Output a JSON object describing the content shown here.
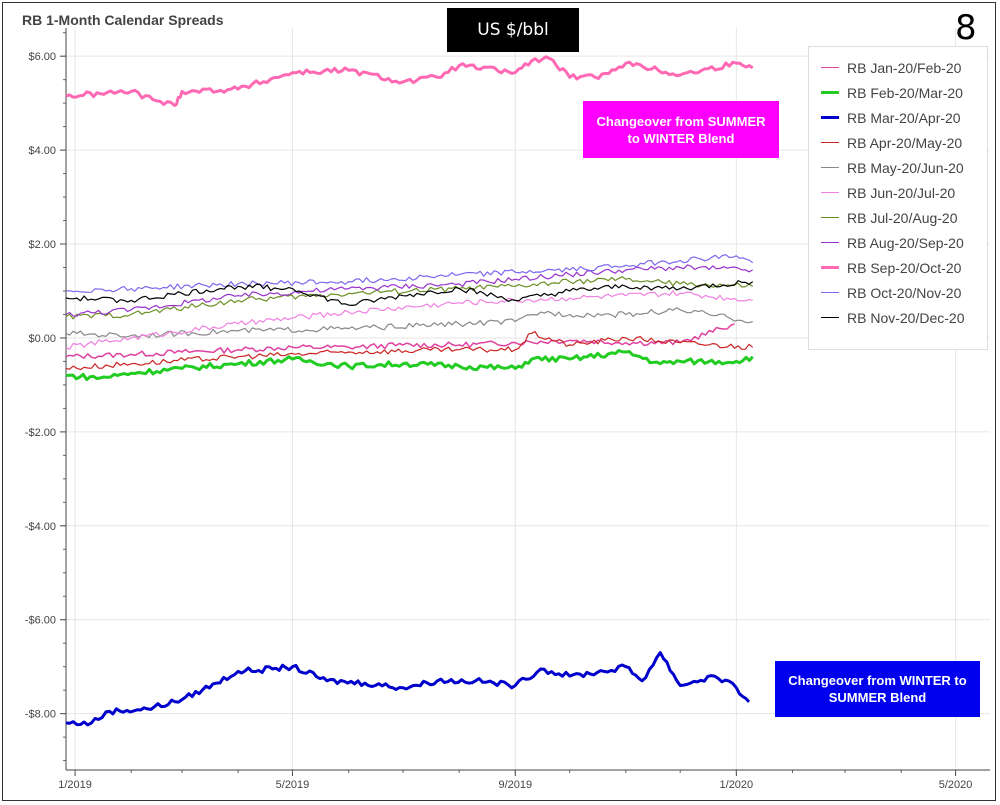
{
  "title": "RB 1-Month Calendar Spreads",
  "unit_label": "US $/bbl",
  "page_number": "8",
  "annotations": {
    "top": "Changeover from SUMMER to WINTER Blend",
    "bottom": "Changeover from WINTER to SUMMER Blend"
  },
  "chart_data": {
    "type": "line",
    "title": "RB 1-Month Calendar Spreads",
    "xlabel": "",
    "ylabel": "US $/bbl",
    "y_tick_labels": [
      "$6.00",
      "$4.00",
      "$2.00",
      "$0.00",
      "-$2.00",
      "-$4.00",
      "-$6.00",
      "-$8.00"
    ],
    "y_ticks": [
      6,
      4,
      2,
      0,
      -2,
      -4,
      -6,
      -8
    ],
    "x_tick_labels": [
      "1/2019",
      "5/2019",
      "9/2019",
      "1/2020",
      "5/2020"
    ],
    "x_ticks": [
      "2019-01-01",
      "2019-05-01",
      "2019-09-01",
      "2020-01-01",
      "2020-05-01"
    ],
    "xlim": [
      "2018-12-27",
      "2020-05-20"
    ],
    "ylim": [
      -9.2,
      6.6
    ],
    "grid": true,
    "legend_position": "top-right",
    "series": [
      {
        "name": "RB Jan-20/Feb-20",
        "color": "#e040a0",
        "width": 1.5,
        "x": [
          "2018-12-27",
          "2019-02-01",
          "2019-03-01",
          "2019-04-01",
          "2019-05-01",
          "2019-06-01",
          "2019-07-01",
          "2019-08-01",
          "2019-09-01",
          "2019-10-01",
          "2019-11-01",
          "2019-12-01",
          "2019-12-31"
        ],
        "y": [
          -0.4,
          -0.35,
          -0.3,
          -0.25,
          -0.2,
          -0.2,
          -0.15,
          -0.15,
          -0.1,
          -0.05,
          -0.1,
          -0.1,
          0.3
        ]
      },
      {
        "name": "RB Feb-20/Mar-20",
        "color": "#22cc22",
        "width": 3,
        "x": [
          "2018-12-27",
          "2019-01-15",
          "2019-02-01",
          "2019-03-01",
          "2019-04-01",
          "2019-05-01",
          "2019-06-01",
          "2019-07-01",
          "2019-08-01",
          "2019-09-01",
          "2019-09-10",
          "2019-10-01",
          "2019-11-01",
          "2019-11-20",
          "2019-12-01",
          "2020-01-01",
          "2020-01-10"
        ],
        "y": [
          -0.8,
          -0.85,
          -0.75,
          -0.65,
          -0.55,
          -0.45,
          -0.6,
          -0.55,
          -0.6,
          -0.65,
          -0.45,
          -0.45,
          -0.3,
          -0.55,
          -0.5,
          -0.5,
          -0.4
        ]
      },
      {
        "name": "RB Mar-20/Apr-20",
        "color": "#0000cc",
        "width": 3,
        "x": [
          "2018-12-27",
          "2019-01-10",
          "2019-01-20",
          "2019-02-10",
          "2019-03-01",
          "2019-03-20",
          "2019-04-01",
          "2019-04-20",
          "2019-05-01",
          "2019-05-20",
          "2019-06-10",
          "2019-07-01",
          "2019-07-20",
          "2019-08-10",
          "2019-09-01",
          "2019-09-15",
          "2019-10-01",
          "2019-10-20",
          "2019-11-01",
          "2019-11-10",
          "2019-11-20",
          "2019-12-01",
          "2019-12-20",
          "2020-01-01",
          "2020-01-08"
        ],
        "y": [
          -8.2,
          -8.2,
          -7.95,
          -7.9,
          -7.7,
          -7.35,
          -7.1,
          -7.05,
          -7.0,
          -7.3,
          -7.35,
          -7.45,
          -7.3,
          -7.3,
          -7.4,
          -7.05,
          -7.2,
          -7.1,
          -7.0,
          -7.3,
          -6.7,
          -7.4,
          -7.2,
          -7.45,
          -7.75
        ]
      },
      {
        "name": "RB Apr-20/May-20",
        "color": "#cc2222",
        "width": 1.2,
        "x": [
          "2018-12-27",
          "2019-02-01",
          "2019-04-01",
          "2019-06-01",
          "2019-08-01",
          "2019-09-01",
          "2019-09-10",
          "2019-10-01",
          "2019-11-01",
          "2019-12-01",
          "2020-01-10"
        ],
        "y": [
          -0.65,
          -0.55,
          -0.4,
          -0.3,
          -0.25,
          -0.25,
          0.1,
          -0.15,
          0.0,
          -0.1,
          -0.2
        ]
      },
      {
        "name": "RB May-20/Jun-20",
        "color": "#888888",
        "width": 1.2,
        "x": [
          "2018-12-27",
          "2019-02-01",
          "2019-04-01",
          "2019-06-01",
          "2019-08-01",
          "2019-09-01",
          "2019-09-15",
          "2019-10-01",
          "2019-11-01",
          "2019-12-01",
          "2020-01-10"
        ],
        "y": [
          0.1,
          0.05,
          0.15,
          0.2,
          0.3,
          0.35,
          0.55,
          0.5,
          0.5,
          0.6,
          0.35
        ]
      },
      {
        "name": "RB Jun-20/Jul-20",
        "color": "#f080e0",
        "width": 1.2,
        "x": [
          "2018-12-27",
          "2019-02-01",
          "2019-04-01",
          "2019-06-01",
          "2019-08-01",
          "2019-09-01",
          "2019-10-01",
          "2019-11-01",
          "2019-12-01",
          "2020-01-10"
        ],
        "y": [
          -0.2,
          0.0,
          0.3,
          0.55,
          0.75,
          0.8,
          0.85,
          0.9,
          0.95,
          0.8
        ]
      },
      {
        "name": "RB Jul-20/Aug-20",
        "color": "#6b8e23",
        "width": 1.2,
        "x": [
          "2018-12-27",
          "2019-02-01",
          "2019-04-01",
          "2019-06-01",
          "2019-08-01",
          "2019-09-01",
          "2019-10-01",
          "2019-11-01",
          "2019-12-01",
          "2020-01-10"
        ],
        "y": [
          0.45,
          0.5,
          0.8,
          0.95,
          1.05,
          1.1,
          1.2,
          1.25,
          1.15,
          1.1
        ]
      },
      {
        "name": "RB Aug-20/Sep-20",
        "color": "#9932cc",
        "width": 1.2,
        "x": [
          "2018-12-27",
          "2019-02-01",
          "2019-04-01",
          "2019-06-01",
          "2019-08-01",
          "2019-09-01",
          "2019-10-01",
          "2019-11-01",
          "2019-12-01",
          "2020-01-10"
        ],
        "y": [
          0.5,
          0.6,
          0.9,
          1.05,
          1.15,
          1.25,
          1.35,
          1.45,
          1.5,
          1.45
        ]
      },
      {
        "name": "RB Sep-20/Oct-20",
        "color": "#ff69b4",
        "width": 3,
        "x": [
          "2018-12-27",
          "2019-01-15",
          "2019-02-01",
          "2019-02-15",
          "2019-02-25",
          "2019-03-01",
          "2019-04-01",
          "2019-05-01",
          "2019-06-01",
          "2019-07-01",
          "2019-07-20",
          "2019-08-01",
          "2019-09-01",
          "2019-09-10",
          "2019-09-20",
          "2019-10-01",
          "2019-10-15",
          "2019-11-01",
          "2019-12-01",
          "2020-01-01",
          "2020-01-10"
        ],
        "y": [
          5.15,
          5.2,
          5.25,
          5.05,
          4.95,
          5.25,
          5.3,
          5.65,
          5.7,
          5.45,
          5.55,
          5.8,
          5.65,
          5.9,
          5.95,
          5.55,
          5.55,
          5.85,
          5.6,
          5.85,
          5.75
        ]
      },
      {
        "name": "RB Oct-20/Nov-20",
        "color": "#7b68ee",
        "width": 1.2,
        "x": [
          "2018-12-27",
          "2019-02-01",
          "2019-04-01",
          "2019-06-01",
          "2019-08-01",
          "2019-09-01",
          "2019-10-01",
          "2019-11-01",
          "2019-12-01",
          "2020-01-01",
          "2020-01-10"
        ],
        "y": [
          1.0,
          1.05,
          1.15,
          1.2,
          1.35,
          1.4,
          1.45,
          1.55,
          1.65,
          1.75,
          1.6
        ]
      },
      {
        "name": "RB Nov-20/Dec-20",
        "color": "#000000",
        "width": 1.2,
        "x": [
          "2018-12-27",
          "2019-02-01",
          "2019-03-01",
          "2019-04-01",
          "2019-05-01",
          "2019-06-01",
          "2019-07-01",
          "2019-08-01",
          "2019-09-01",
          "2019-10-01",
          "2019-11-01",
          "2019-12-01",
          "2020-01-10"
        ],
        "y": [
          0.85,
          0.8,
          0.95,
          1.1,
          1.05,
          0.7,
          0.9,
          1.05,
          0.8,
          1.0,
          1.1,
          1.05,
          1.2
        ]
      }
    ]
  }
}
